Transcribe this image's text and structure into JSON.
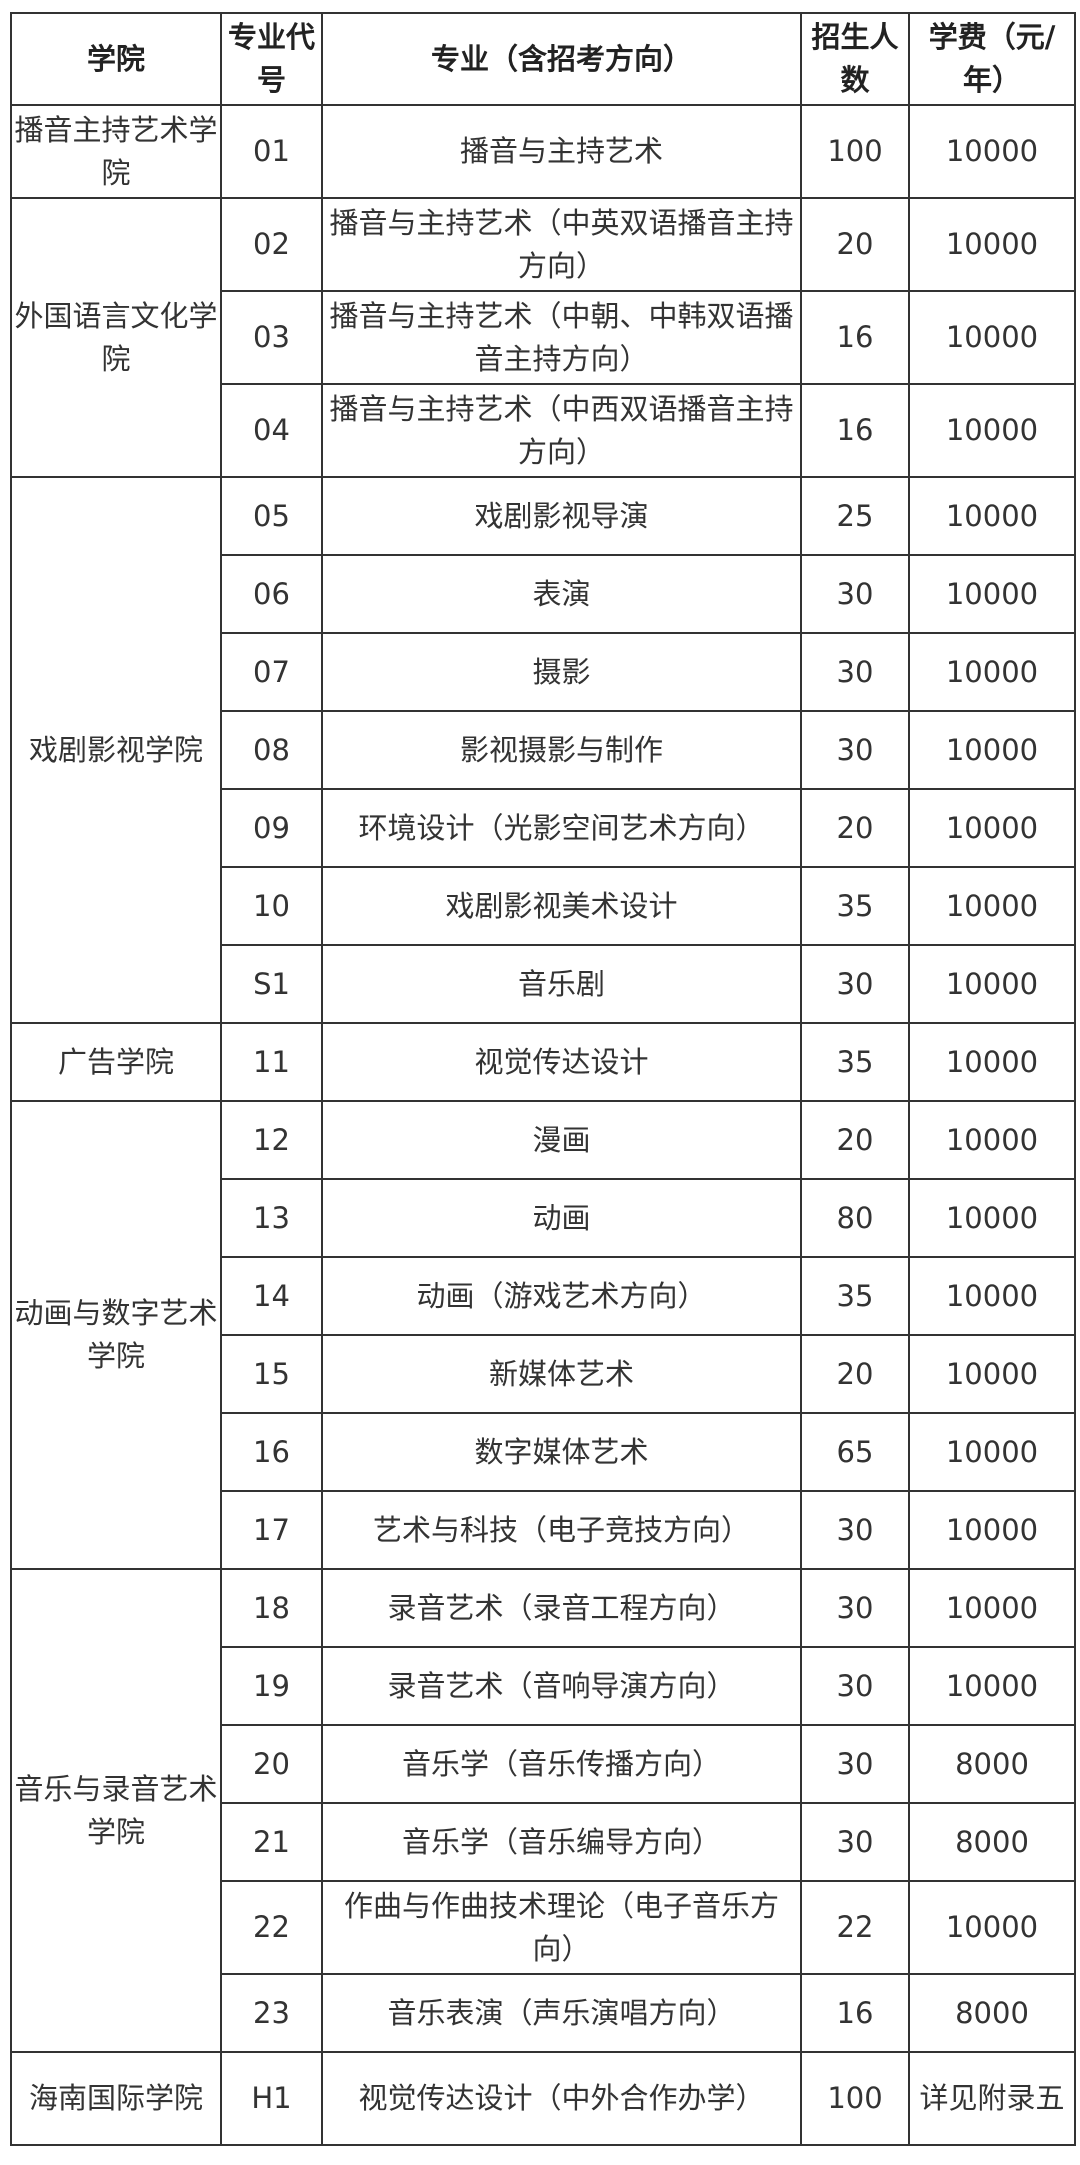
{
  "headers": [
    "学院",
    "专业代号",
    "专业（含招考方向）",
    "招生人数",
    "学费（元/年）"
  ],
  "colleges": [
    "播音主持艺术学院",
    "外国语言文化学院",
    "戏剧影视学院",
    "广告学院",
    "动画与数字艺术学院",
    "音乐与录音艺术学院",
    "海南国际学院"
  ],
  "rows": [
    {
      "code": "01",
      "major": "播音与主持艺术",
      "count": "100",
      "fee": "10000"
    },
    {
      "code": "02",
      "major": "播音与主持艺术（中英双语播音主持方向）",
      "count": "20",
      "fee": "10000"
    },
    {
      "code": "03",
      "major": "播音与主持艺术（中朝、中韩双语播音主持方向）",
      "count": "16",
      "fee": "10000"
    },
    {
      "code": "04",
      "major": "播音与主持艺术（中西双语播音主持方向）",
      "count": "16",
      "fee": "10000"
    },
    {
      "code": "05",
      "major": "戏剧影视导演",
      "count": "25",
      "fee": "10000"
    },
    {
      "code": "06",
      "major": "表演",
      "count": "30",
      "fee": "10000"
    },
    {
      "code": "07",
      "major": "摄影",
      "count": "30",
      "fee": "10000"
    },
    {
      "code": "08",
      "major": "影视摄影与制作",
      "count": "30",
      "fee": "10000"
    },
    {
      "code": "09",
      "major": "环境设计（光影空间艺术方向）",
      "count": "20",
      "fee": "10000"
    },
    {
      "code": "10",
      "major": "戏剧影视美术设计",
      "count": "35",
      "fee": "10000"
    },
    {
      "code": "S1",
      "major": "音乐剧",
      "count": "30",
      "fee": "10000"
    },
    {
      "code": "11",
      "major": "视觉传达设计",
      "count": "35",
      "fee": "10000"
    },
    {
      "code": "12",
      "major": "漫画",
      "count": "20",
      "fee": "10000"
    },
    {
      "code": "13",
      "major": "动画",
      "count": "80",
      "fee": "10000"
    },
    {
      "code": "14",
      "major": "动画（游戏艺术方向）",
      "count": "35",
      "fee": "10000"
    },
    {
      "code": "15",
      "major": "新媒体艺术",
      "count": "20",
      "fee": "10000"
    },
    {
      "code": "16",
      "major": "数字媒体艺术",
      "count": "65",
      "fee": "10000"
    },
    {
      "code": "17",
      "major": "艺术与科技（电子竞技方向）",
      "count": "30",
      "fee": "10000"
    },
    {
      "code": "18",
      "major": "录音艺术（录音工程方向）",
      "count": "30",
      "fee": "10000"
    },
    {
      "code": "19",
      "major": "录音艺术（音响导演方向）",
      "count": "30",
      "fee": "10000"
    },
    {
      "code": "20",
      "major": "音乐学（音乐传播方向）",
      "count": "30",
      "fee": "8000"
    },
    {
      "code": "21",
      "major": "音乐学（音乐编导方向）",
      "count": "30",
      "fee": "8000"
    },
    {
      "code": "22",
      "major": "作曲与作曲技术理论（电子音乐方向）",
      "count": "22",
      "fee": "10000"
    },
    {
      "code": "23",
      "major": "音乐表演（声乐演唱方向）",
      "count": "16",
      "fee": "8000"
    },
    {
      "code": "H1",
      "major": "视觉传达设计（中外合作办学）",
      "count": "100",
      "fee": "详见附录五"
    }
  ]
}
